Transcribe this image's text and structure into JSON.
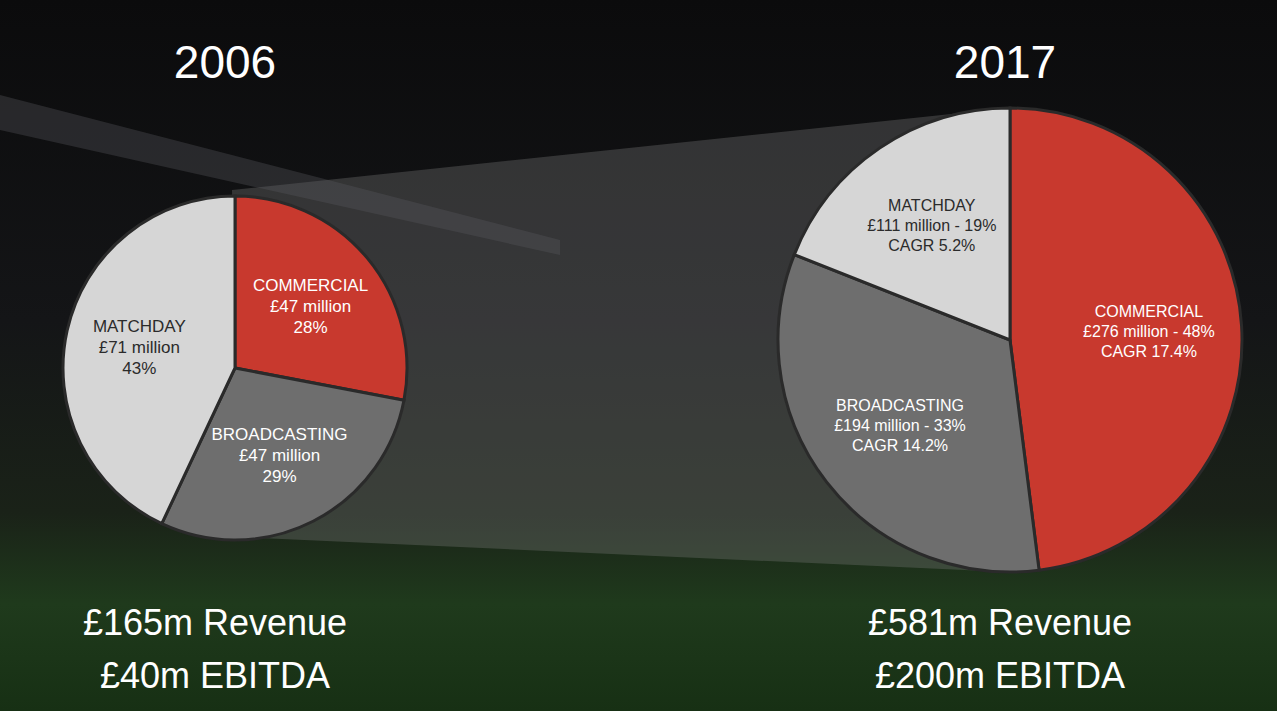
{
  "chart_data": [
    {
      "type": "pie",
      "title": "2006",
      "categories": [
        "COMMERCIAL",
        "BROADCASTING",
        "MATCHDAY"
      ],
      "values": [
        28,
        29,
        43
      ],
      "value_labels": [
        "28%",
        "29%",
        "43%"
      ],
      "amount_labels": [
        "£47 million",
        "£47 million",
        "£71 million"
      ],
      "colors": [
        "#c8392e",
        "#6e6e6e",
        "#d6d6d6"
      ],
      "data_labels": true,
      "annotations": [
        "£165m Revenue",
        "£40m EBITDA"
      ]
    },
    {
      "type": "pie",
      "title": "2017",
      "categories": [
        "COMMERCIAL",
        "BROADCASTING",
        "MATCHDAY"
      ],
      "values": [
        48,
        33,
        19
      ],
      "value_labels": [
        "£276 million - 48%",
        "£194 million - 33%",
        "£111 million - 19%"
      ],
      "cagr_labels": [
        "CAGR 17.4%",
        "CAGR 14.2%",
        "CAGR 5.2%"
      ],
      "colors": [
        "#c8392e",
        "#6e6e6e",
        "#d6d6d6"
      ],
      "data_labels": true,
      "annotations": [
        "£581m Revenue",
        "£200m EBITDA"
      ]
    }
  ]
}
